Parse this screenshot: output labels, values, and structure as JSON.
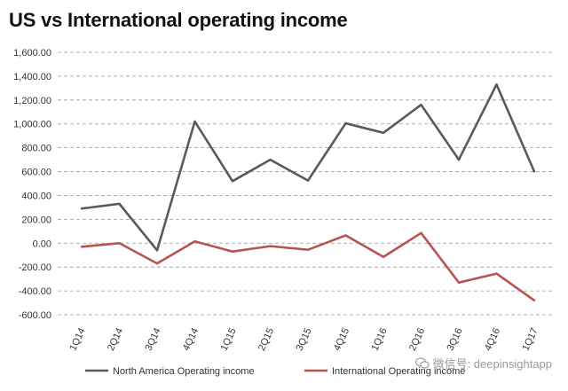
{
  "title": "US vs International operating income",
  "colors": {
    "north_america": "#5a5a5a",
    "international": "#b85450",
    "grid": "#9a9a9a",
    "axis": "#888888"
  },
  "watermark": {
    "text": "微信号: deepinsightapp",
    "icon": "wechat-icon"
  },
  "chart_data": {
    "type": "line",
    "title": "US vs International operating income",
    "xlabel": "",
    "ylabel": "",
    "categories": [
      "1Q14",
      "2Q14",
      "3Q14",
      "4Q14",
      "1Q15",
      "2Q15",
      "3Q15",
      "4Q15",
      "1Q16",
      "2Q16",
      "3Q16",
      "4Q16",
      "1Q17"
    ],
    "ylim": [
      -600,
      1600
    ],
    "yticks": [
      -600,
      -400,
      -200,
      0,
      200,
      400,
      600,
      800,
      1000,
      1200,
      1400,
      1600
    ],
    "ytick_labels": [
      "-600.00",
      "-400.00",
      "-200.00",
      "0.00",
      "200.00",
      "400.00",
      "600.00",
      "800.00",
      "1,000.00",
      "1,200.00",
      "1,400.00",
      "1,600.00"
    ],
    "grid": true,
    "legend_position": "bottom",
    "series": [
      {
        "name": "North America Operating income",
        "values": [
          290,
          330,
          -60,
          1020,
          520,
          700,
          525,
          1005,
          925,
          1160,
          700,
          1330,
          600
        ]
      },
      {
        "name": "International Operating income",
        "values": [
          -30,
          0,
          -170,
          15,
          -70,
          -25,
          -55,
          65,
          -115,
          85,
          -330,
          -255,
          -480
        ]
      }
    ]
  }
}
